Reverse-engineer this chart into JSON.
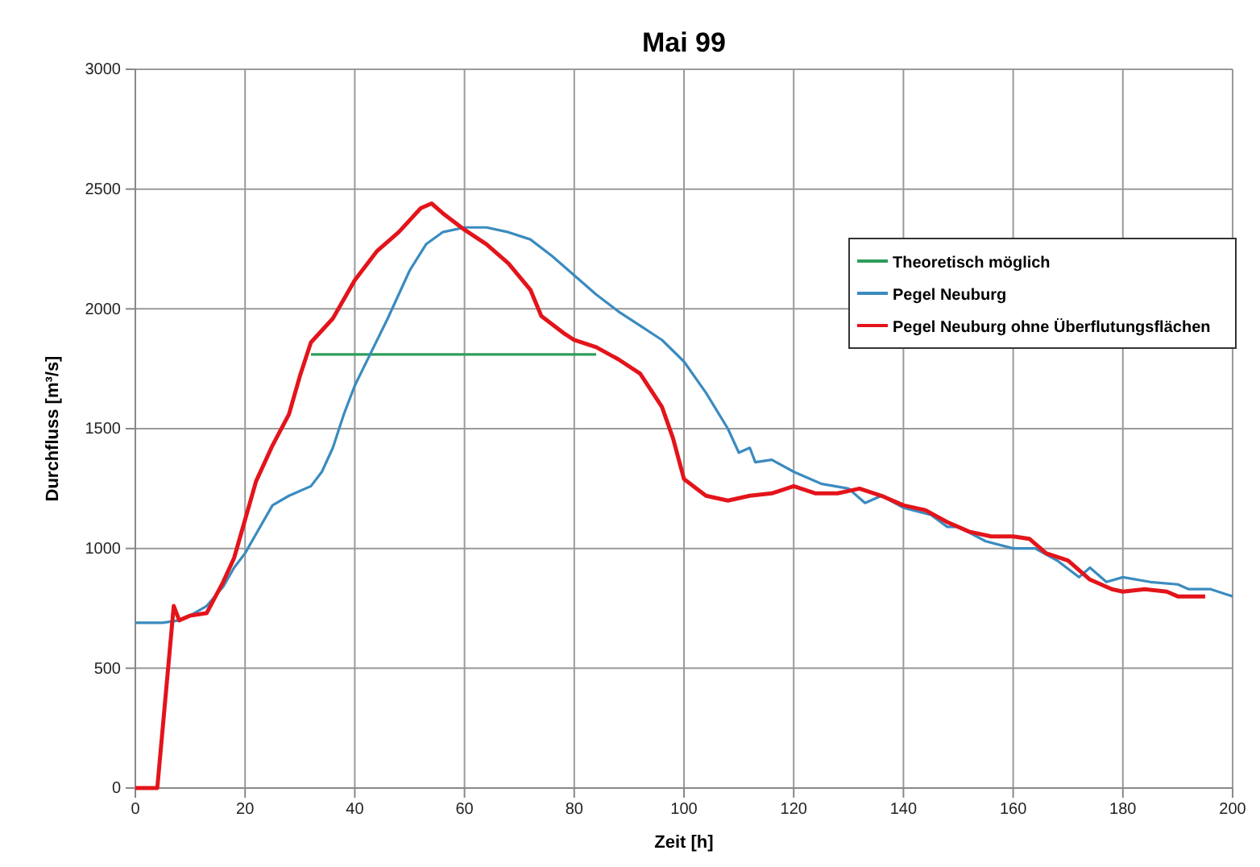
{
  "chart_data": {
    "type": "line",
    "title": "Mai 99",
    "xlabel": "Zeit [h]",
    "ylabel": "Durchfluss [m³/s]",
    "xlim": [
      0,
      200
    ],
    "xticks": [
      0,
      20,
      40,
      60,
      80,
      100,
      120,
      140,
      160,
      180,
      200
    ],
    "ylim": [
      0,
      3000
    ],
    "yticks": [
      0,
      500,
      1000,
      1500,
      2000,
      2500,
      3000
    ],
    "grid": true,
    "legend": "right",
    "line_style": "solid",
    "marker": "none",
    "series": [
      {
        "name": "Theoretisch möglich",
        "color": "#2e9e5b",
        "x": [
          32,
          84
        ],
        "values": [
          1810,
          1810
        ]
      },
      {
        "name": "Pegel Neuburg",
        "color": "#3a8bbf",
        "x": [
          0,
          5,
          8,
          10,
          13,
          16,
          18,
          20,
          22,
          25,
          28,
          32,
          34,
          36,
          38,
          40,
          43,
          46,
          50,
          53,
          56,
          60,
          64,
          68,
          72,
          76,
          80,
          84,
          88,
          92,
          96,
          100,
          104,
          108,
          110,
          112,
          113,
          116,
          120,
          125,
          130,
          133,
          136,
          140,
          145,
          148,
          150,
          155,
          160,
          164,
          168,
          172,
          174,
          177,
          180,
          185,
          190,
          192,
          196,
          200
        ],
        "values": [
          690,
          690,
          700,
          720,
          760,
          840,
          920,
          980,
          1060,
          1180,
          1220,
          1260,
          1320,
          1420,
          1560,
          1680,
          1820,
          1960,
          2160,
          2270,
          2320,
          2340,
          2340,
          2320,
          2290,
          2220,
          2140,
          2060,
          1990,
          1930,
          1870,
          1780,
          1650,
          1500,
          1400,
          1420,
          1360,
          1370,
          1320,
          1270,
          1250,
          1190,
          1220,
          1170,
          1140,
          1090,
          1090,
          1030,
          1000,
          1000,
          950,
          880,
          920,
          860,
          880,
          860,
          850,
          830,
          830,
          800
        ]
      },
      {
        "name": "Pegel Neuburg ohne Überflutungsflächen",
        "color": "#e3141b",
        "x": [
          0,
          4,
          7,
          8,
          10,
          13,
          16,
          18,
          20,
          22,
          25,
          28,
          30,
          32,
          36,
          40,
          44,
          48,
          52,
          54,
          56,
          60,
          64,
          68,
          72,
          74,
          78,
          80,
          84,
          88,
          92,
          96,
          98,
          100,
          104,
          108,
          112,
          116,
          120,
          124,
          128,
          132,
          136,
          140,
          144,
          148,
          152,
          156,
          160,
          163,
          166,
          170,
          174,
          178,
          180,
          184,
          188,
          190,
          195
        ],
        "values": [
          0,
          0,
          760,
          700,
          720,
          730,
          860,
          960,
          1120,
          1280,
          1430,
          1560,
          1720,
          1860,
          1960,
          2120,
          2240,
          2320,
          2420,
          2440,
          2400,
          2330,
          2270,
          2190,
          2080,
          1970,
          1900,
          1870,
          1840,
          1790,
          1730,
          1590,
          1460,
          1290,
          1220,
          1200,
          1220,
          1230,
          1260,
          1230,
          1230,
          1250,
          1220,
          1180,
          1160,
          1110,
          1070,
          1050,
          1050,
          1040,
          980,
          950,
          870,
          830,
          820,
          830,
          820,
          800,
          800
        ]
      }
    ]
  }
}
